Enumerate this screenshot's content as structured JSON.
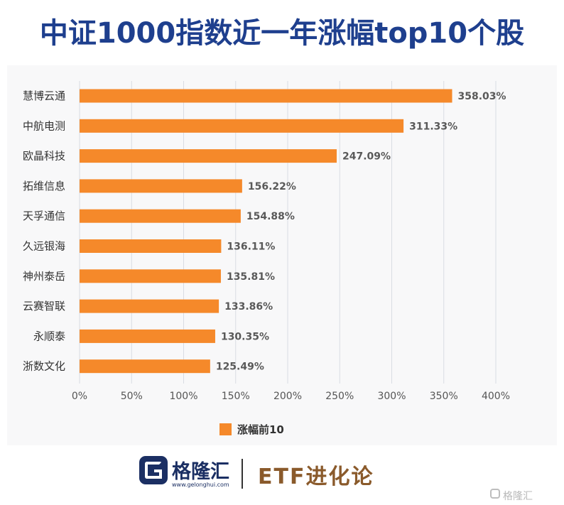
{
  "title": "中证1000指数近一年涨幅top10个股",
  "chart_data": {
    "type": "bar",
    "orientation": "horizontal",
    "categories": [
      "慧博云通",
      "中航电测",
      "欧晶科技",
      "拓维信息",
      "天孚通信",
      "久远银海",
      "神州泰岳",
      "云赛智联",
      "永顺泰",
      "浙数文化"
    ],
    "series": [
      {
        "name": "涨幅前10",
        "values": [
          358.03,
          311.33,
          247.09,
          156.22,
          154.88,
          136.11,
          135.81,
          133.86,
          130.35,
          125.49
        ],
        "labels": [
          "358.03%",
          "311.33%",
          "247.09%",
          "156.22%",
          "154.88%",
          "136.11%",
          "135.81%",
          "133.86%",
          "130.35%",
          "125.49%"
        ],
        "color": "#f5892a"
      }
    ],
    "xlim": [
      0,
      400
    ],
    "xticks": [
      0,
      50,
      100,
      150,
      200,
      250,
      300,
      350,
      400
    ],
    "xtick_labels": [
      "0%",
      "50%",
      "100%",
      "150%",
      "200%",
      "250%",
      "300%",
      "350%",
      "400%"
    ],
    "grid": true,
    "legend": "bottom-center"
  },
  "footer": {
    "brand": "格隆汇",
    "brand_url": "www.gelonghui.com",
    "column": "ETF进化论",
    "watermark": "格隆汇"
  },
  "colors": {
    "title": "#1e3f8e",
    "bar": "#f5892a",
    "grid": "#d9dce3",
    "brand": "#1b2f63",
    "column": "#8a5a2b"
  }
}
